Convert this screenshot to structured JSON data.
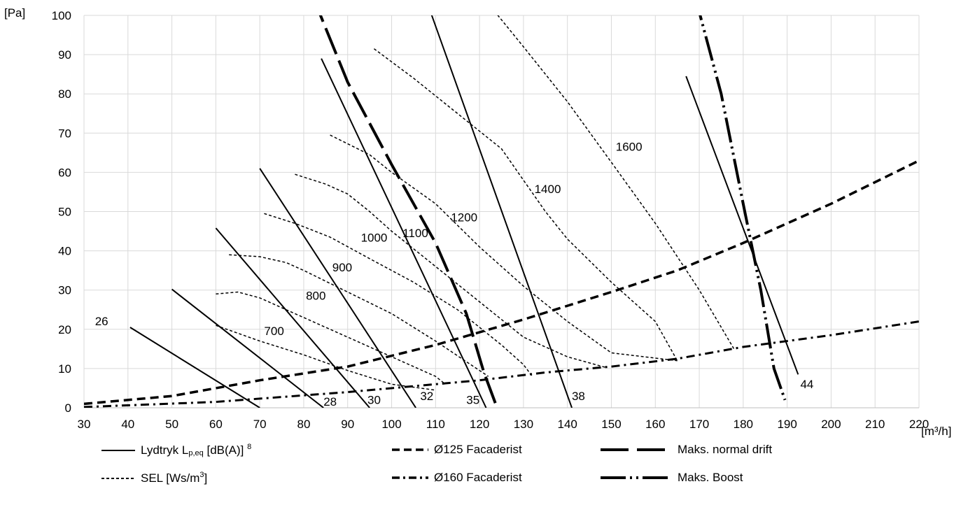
{
  "chart_data": {
    "type": "line",
    "xlabel": "[m³/h]",
    "ylabel": "[Pa]",
    "xlim": [
      30,
      220
    ],
    "ylim": [
      0,
      100
    ],
    "xticks": [
      "30",
      "40",
      "50",
      "60",
      "70",
      "80",
      "90",
      "100",
      "110",
      "120",
      "130",
      "140",
      "150",
      "160",
      "170",
      "180",
      "190",
      "200",
      "210",
      "220"
    ],
    "yticks": [
      "0",
      "10",
      "20",
      "30",
      "40",
      "50",
      "60",
      "70",
      "80",
      "90",
      "100"
    ],
    "grid": true,
    "sound_lines": [
      {
        "label": "26",
        "points": [
          [
            40.5,
            20.5
          ],
          [
            70,
            0
          ]
        ]
      },
      {
        "label": "28",
        "points": [
          [
            50,
            30.2
          ],
          [
            84.5,
            0
          ]
        ]
      },
      {
        "label": "30",
        "points": [
          [
            60,
            45.8
          ],
          [
            95,
            0
          ]
        ]
      },
      {
        "label": "32",
        "points": [
          [
            70,
            61
          ],
          [
            105.5,
            0
          ]
        ]
      },
      {
        "label": "35",
        "points": [
          [
            84,
            89
          ],
          [
            121.5,
            0
          ]
        ]
      },
      {
        "label": "38",
        "points": [
          [
            108.5,
            102
          ],
          [
            141,
            0
          ]
        ]
      },
      {
        "label": "44",
        "points": [
          [
            167,
            84.5
          ],
          [
            192.5,
            8.5
          ]
        ]
      }
    ],
    "sel_lines": [
      {
        "label": "700",
        "points": [
          [
            60,
            21
          ],
          [
            70,
            17
          ],
          [
            80,
            13.5
          ],
          [
            90,
            9.5
          ],
          [
            100,
            6
          ],
          [
            110,
            4.5
          ]
        ]
      },
      {
        "label": "800",
        "points": [
          [
            60,
            29
          ],
          [
            65,
            29.5
          ],
          [
            70,
            28
          ],
          [
            80,
            23
          ],
          [
            90,
            18
          ],
          [
            100,
            13
          ],
          [
            110,
            8
          ],
          [
            112,
            6.2
          ]
        ]
      },
      {
        "label": "900",
        "points": [
          [
            63,
            39
          ],
          [
            70,
            38.5
          ],
          [
            76,
            37
          ],
          [
            80,
            35
          ],
          [
            90,
            29.5
          ],
          [
            100,
            24
          ],
          [
            110,
            17
          ],
          [
            118,
            11
          ],
          [
            122,
            8
          ]
        ]
      },
      {
        "label": "1000",
        "points": [
          [
            71,
            49.5
          ],
          [
            78,
            47
          ],
          [
            86,
            43.5
          ],
          [
            95,
            38
          ],
          [
            105,
            32
          ],
          [
            115,
            25
          ],
          [
            125,
            16
          ],
          [
            130,
            11
          ],
          [
            132,
            8
          ]
        ]
      },
      {
        "label": "1100",
        "points": [
          [
            78,
            59.5
          ],
          [
            85,
            57
          ],
          [
            90,
            54.5
          ],
          [
            95,
            50
          ],
          [
            100,
            45
          ],
          [
            110,
            36
          ],
          [
            120,
            27
          ],
          [
            130,
            18
          ],
          [
            140,
            13
          ],
          [
            149,
            10.2
          ]
        ]
      },
      {
        "label": "1200",
        "points": [
          [
            86,
            69.5
          ],
          [
            95,
            64.5
          ],
          [
            100,
            60
          ],
          [
            110,
            52
          ],
          [
            120,
            41
          ],
          [
            130,
            31
          ],
          [
            140,
            22
          ],
          [
            150,
            14
          ],
          [
            165,
            12
          ]
        ]
      },
      {
        "label": "1400",
        "points": [
          [
            96,
            91.5
          ],
          [
            105,
            84
          ],
          [
            115,
            75
          ],
          [
            125,
            66
          ],
          [
            135,
            50
          ],
          [
            140,
            43
          ],
          [
            150,
            32
          ],
          [
            160,
            22
          ],
          [
            165,
            12
          ]
        ]
      },
      {
        "label": "1600",
        "points": [
          [
            122,
            103
          ],
          [
            130,
            92
          ],
          [
            140,
            78
          ],
          [
            151,
            61
          ],
          [
            160,
            47
          ],
          [
            170,
            30
          ],
          [
            178,
            14.8
          ]
        ]
      }
    ],
    "phi125": [
      [
        30,
        1
      ],
      [
        50,
        3
      ],
      [
        70,
        7
      ],
      [
        90,
        10.5
      ],
      [
        110,
        16
      ],
      [
        130,
        22.5
      ],
      [
        150,
        29.5
      ],
      [
        165,
        35
      ],
      [
        180,
        42
      ],
      [
        200,
        52
      ],
      [
        220,
        63
      ]
    ],
    "phi160": [
      [
        30,
        0.2
      ],
      [
        60,
        1.5
      ],
      [
        90,
        4
      ],
      [
        110,
        6
      ],
      [
        120,
        7
      ],
      [
        135,
        9
      ],
      [
        150,
        10.5
      ],
      [
        165,
        12.5
      ],
      [
        180,
        15.5
      ],
      [
        200,
        18.5
      ],
      [
        220,
        22
      ]
    ],
    "maks_normal": [
      [
        82,
        105
      ],
      [
        90,
        83
      ],
      [
        100,
        62
      ],
      [
        110,
        42
      ],
      [
        117,
        24
      ],
      [
        121,
        9
      ],
      [
        124,
        0
      ]
    ],
    "maks_boost": [
      [
        169,
        105
      ],
      [
        175,
        80
      ],
      [
        180,
        52
      ],
      [
        184,
        30
      ],
      [
        187,
        10
      ],
      [
        189.5,
        2
      ]
    ],
    "legend": {
      "sound_pre": "Lydtryk L",
      "sound_sub": "p,eq",
      "sound_post": " [dB(A)] ",
      "sound_sup": "8",
      "sel_pre": "SEL [Ws/m",
      "sel_sup": "3",
      "sel_post": "]",
      "phi125": "Ø125 Facaderist",
      "phi160": "Ø160 Facaderist",
      "maks_normal": "Maks. normal drift",
      "maks_boost": "Maks. Boost"
    }
  }
}
